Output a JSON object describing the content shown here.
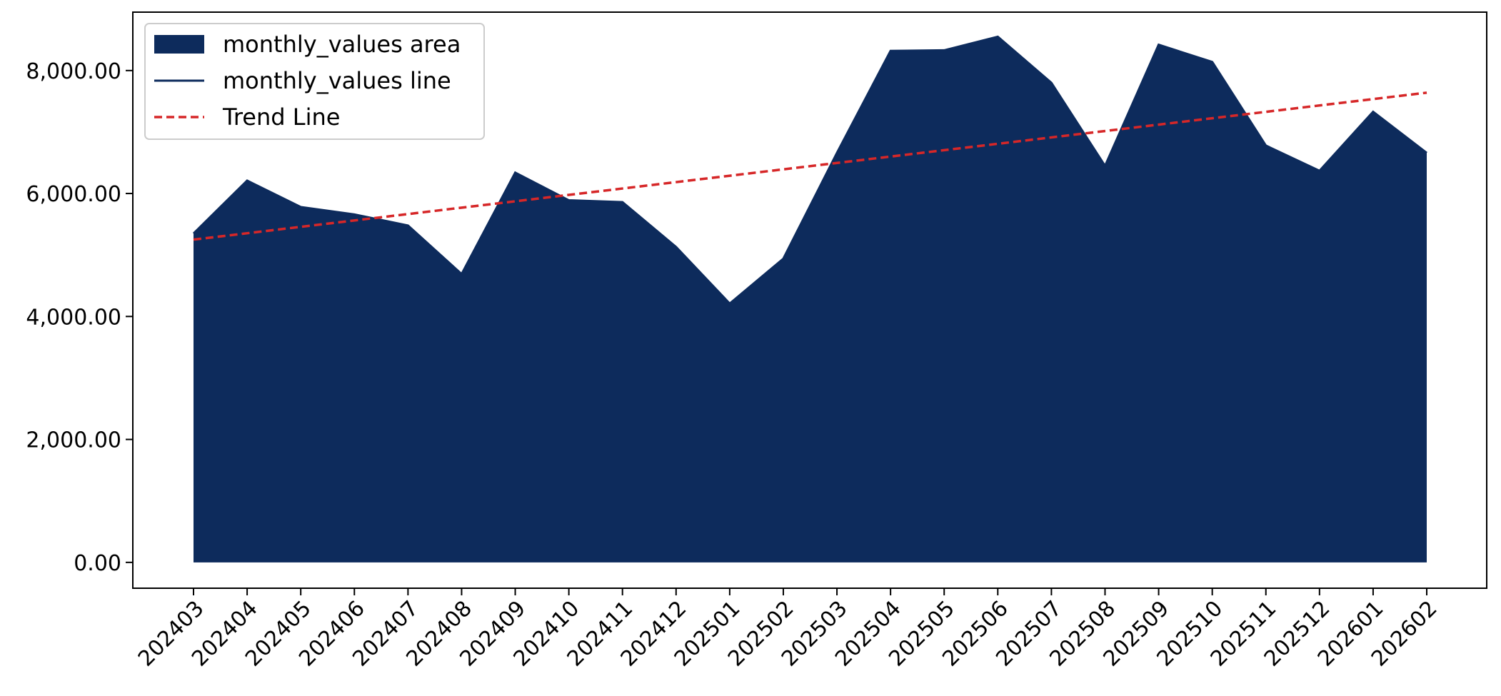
{
  "chart_data": {
    "type": "area",
    "title": "",
    "xlabel": "",
    "ylabel": "",
    "categories": [
      "202403",
      "202404",
      "202405",
      "202406",
      "202407",
      "202408",
      "202409",
      "202410",
      "202411",
      "202412",
      "202501",
      "202502",
      "202503",
      "202504",
      "202505",
      "202506",
      "202507",
      "202508",
      "202509",
      "202510",
      "202511",
      "202512",
      "202601",
      "202602"
    ],
    "series": [
      {
        "name": "monthly_values area",
        "kind": "area",
        "color": "#0d2b5c",
        "values": [
          5350,
          6210,
          5780,
          5660,
          5480,
          4690,
          6340,
          5890,
          5860,
          5130,
          4210,
          4940,
          6660,
          8320,
          8330,
          8550,
          7800,
          6450,
          8420,
          8140,
          6780,
          6370,
          7330,
          6660
        ]
      },
      {
        "name": "monthly_values line",
        "kind": "line",
        "color": "#0d2b5c",
        "values": [
          5350,
          6210,
          5780,
          5660,
          5480,
          4690,
          6340,
          5890,
          5860,
          5130,
          4210,
          4940,
          6660,
          8320,
          8330,
          8550,
          7800,
          6450,
          8420,
          8140,
          6780,
          6370,
          7330,
          6660
        ]
      },
      {
        "name": "Trend Line",
        "kind": "trend",
        "color": "#d62728",
        "start": 5250,
        "end": 7640
      }
    ],
    "ylim": [
      -420,
      8950
    ],
    "yticks": [
      0,
      2000,
      4000,
      6000,
      8000
    ],
    "ytick_labels": [
      "0.00",
      "2,000.00",
      "4,000.00",
      "6,000.00",
      "8,000.00"
    ],
    "grid": false,
    "legend_position": "top-left"
  }
}
